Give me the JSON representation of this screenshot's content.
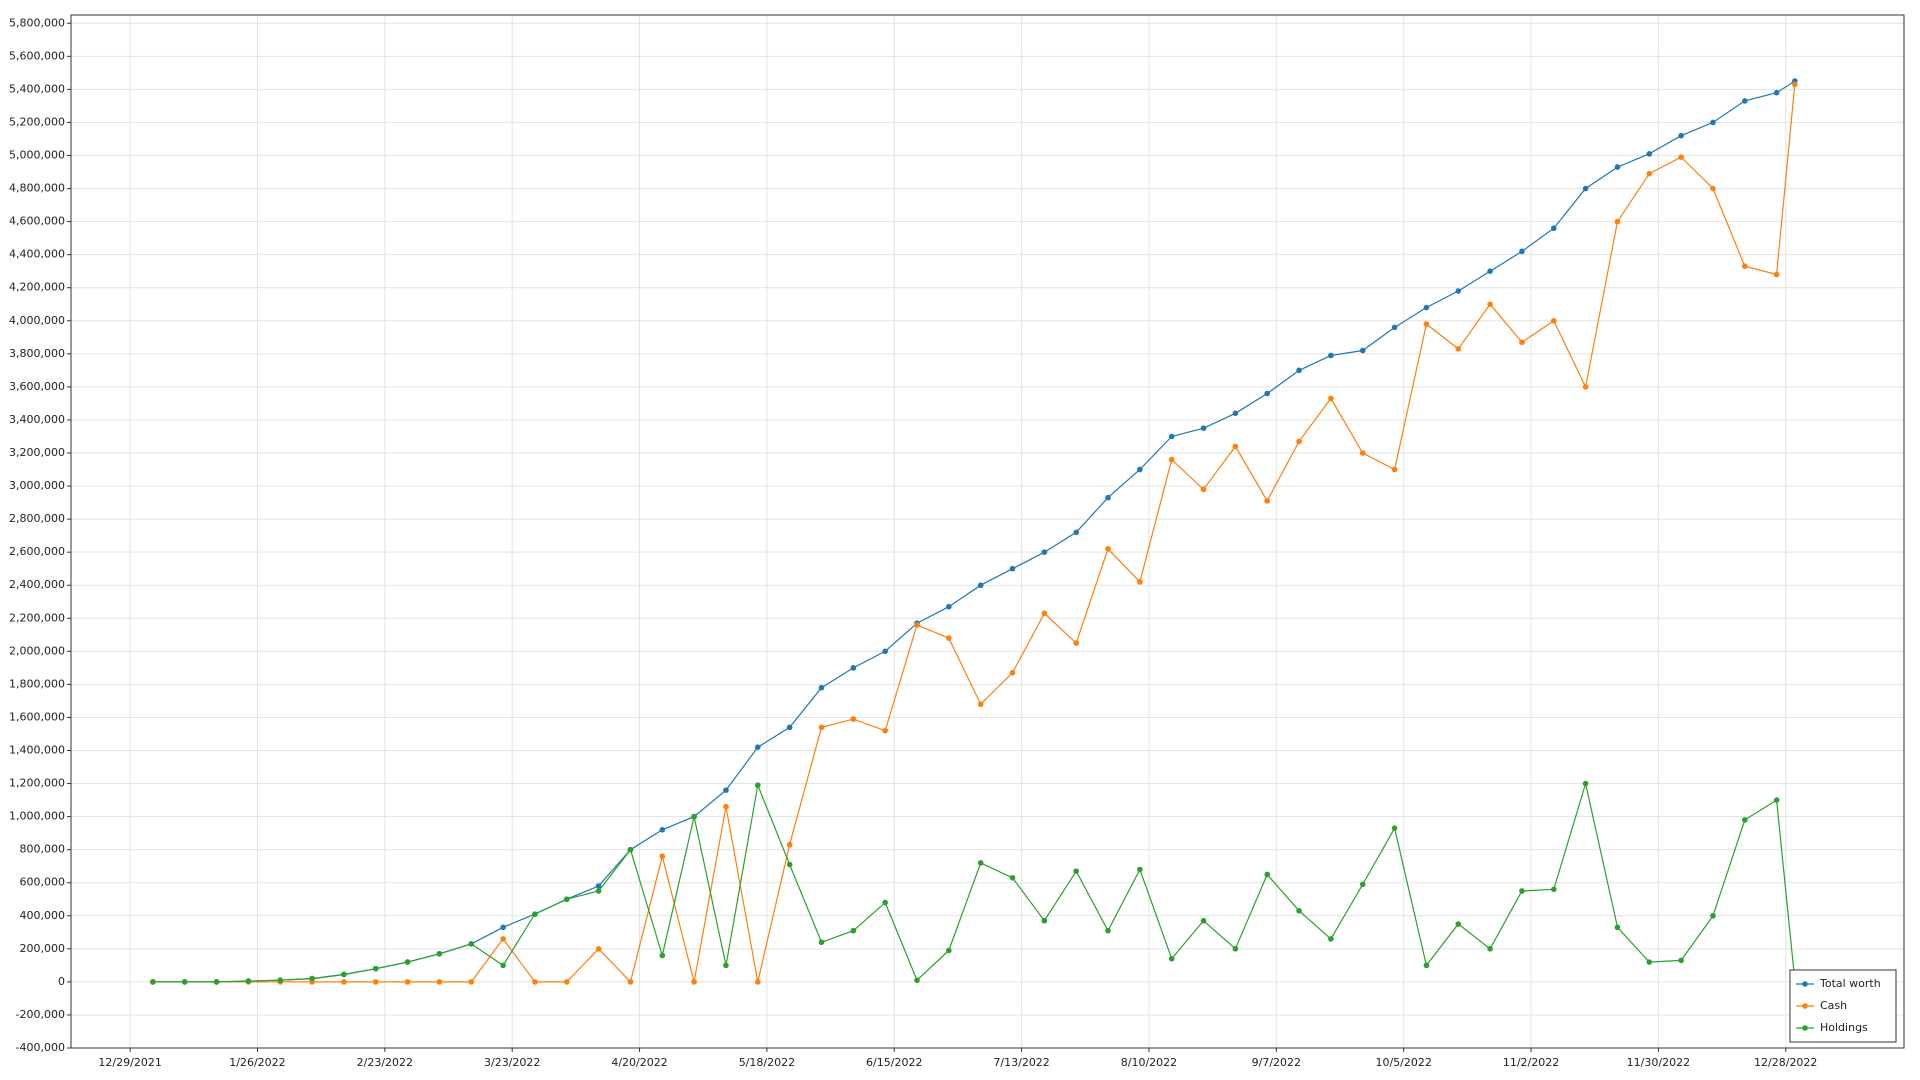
{
  "chart_data": {
    "type": "line",
    "x": [
      "1/3/2022",
      "1/10/2022",
      "1/17/2022",
      "1/24/2022",
      "1/31/2022",
      "2/7/2022",
      "2/14/2022",
      "2/21/2022",
      "2/28/2022",
      "3/7/2022",
      "3/14/2022",
      "3/21/2022",
      "3/28/2022",
      "4/4/2022",
      "4/11/2022",
      "4/18/2022",
      "4/25/2022",
      "5/2/2022",
      "5/9/2022",
      "5/16/2022",
      "5/23/2022",
      "5/30/2022",
      "6/6/2022",
      "6/13/2022",
      "6/20/2022",
      "6/27/2022",
      "7/4/2022",
      "7/11/2022",
      "7/18/2022",
      "7/25/2022",
      "8/1/2022",
      "8/8/2022",
      "8/15/2022",
      "8/22/2022",
      "8/29/2022",
      "9/5/2022",
      "9/12/2022",
      "9/19/2022",
      "9/26/2022",
      "10/3/2022",
      "10/10/2022",
      "10/17/2022",
      "10/24/2022",
      "10/31/2022",
      "11/7/2022",
      "11/14/2022",
      "11/21/2022",
      "11/28/2022",
      "12/5/2022",
      "12/12/2022",
      "12/19/2022",
      "12/26/2022",
      "12/30/2022"
    ],
    "series": [
      {
        "name": "Total worth",
        "color": "#1f77b4",
        "values": [
          0,
          0,
          0,
          5000,
          10000,
          20000,
          45000,
          80000,
          120000,
          170000,
          230000,
          330000,
          410000,
          500000,
          580000,
          800000,
          920000,
          1000000,
          1160000,
          1420000,
          1540000,
          1780000,
          1900000,
          2000000,
          2170000,
          2270000,
          2400000,
          2500000,
          2600000,
          2720000,
          2930000,
          3100000,
          3300000,
          3350000,
          3440000,
          3560000,
          3700000,
          3790000,
          3820000,
          3960000,
          4080000,
          4180000,
          4300000,
          4420000,
          4560000,
          4800000,
          4930000,
          5010000,
          5120000,
          5200000,
          5330000,
          5380000,
          5450000
        ]
      },
      {
        "name": "Cash",
        "color": "#ff7f0e",
        "values": [
          0,
          0,
          0,
          0,
          0,
          0,
          0,
          0,
          0,
          0,
          0,
          260000,
          0,
          0,
          200000,
          0,
          760000,
          0,
          1060000,
          0,
          830000,
          1540000,
          1590000,
          1520000,
          2160000,
          2080000,
          1680000,
          1870000,
          2230000,
          2050000,
          2620000,
          2420000,
          3160000,
          2980000,
          3240000,
          2910000,
          3270000,
          3530000,
          3200000,
          3100000,
          3980000,
          3830000,
          4100000,
          3870000,
          4000000,
          3600000,
          4600000,
          4890000,
          4990000,
          4800000,
          4330000,
          4280000,
          5430000
        ]
      },
      {
        "name": "Holdings",
        "color": "#2ca02c",
        "values": [
          0,
          0,
          0,
          5000,
          10000,
          20000,
          45000,
          80000,
          120000,
          170000,
          230000,
          100000,
          410000,
          500000,
          550000,
          800000,
          160000,
          1000000,
          100000,
          1190000,
          710000,
          240000,
          310000,
          480000,
          10000,
          190000,
          720000,
          630000,
          370000,
          670000,
          310000,
          680000,
          140000,
          370000,
          200000,
          650000,
          430000,
          260000,
          590000,
          930000,
          100000,
          350000,
          200000,
          550000,
          560000,
          1200000,
          330000,
          120000,
          130000,
          400000,
          980000,
          1100000,
          10000
        ]
      }
    ],
    "xlim": [
      "12/16/2021",
      "1/23/2023"
    ],
    "xticks": [
      "12/29/2021",
      "1/26/2022",
      "2/23/2022",
      "3/23/2022",
      "4/20/2022",
      "5/18/2022",
      "6/15/2022",
      "7/13/2022",
      "8/10/2022",
      "9/7/2022",
      "10/5/2022",
      "11/2/2022",
      "11/30/2022",
      "12/28/2022"
    ],
    "ylim": [
      -400000,
      5850000
    ],
    "yticks": [
      {
        "value": -400000,
        "label": "-400,000"
      },
      {
        "value": -200000,
        "label": "-200,000"
      },
      0,
      {
        "value": 200000,
        "label": "200,000"
      },
      {
        "value": 400000,
        "label": "400,000"
      },
      {
        "value": 600000,
        "label": "600,000"
      },
      {
        "value": 800000,
        "label": "800,000"
      },
      {
        "value": 1000000,
        "label": "1,000,000"
      },
      {
        "value": 1200000,
        "label": "1,200,000"
      },
      {
        "value": 1400000,
        "label": "1,400,000"
      },
      {
        "value": 1600000,
        "label": "1,600,000"
      },
      {
        "value": 1800000,
        "label": "1,800,000"
      },
      {
        "value": 2000000,
        "label": "2,000,000"
      },
      {
        "value": 2200000,
        "label": "2,200,000"
      },
      {
        "value": 2400000,
        "label": "2,400,000"
      },
      {
        "value": 2600000,
        "label": "2,600,000"
      },
      {
        "value": 2800000,
        "label": "2,800,000"
      },
      {
        "value": 3000000,
        "label": "3,000,000"
      },
      {
        "value": 3200000,
        "label": "3,200,000"
      },
      {
        "value": 3400000,
        "label": "3,400,000"
      },
      {
        "value": 3600000,
        "label": "3,600,000"
      },
      {
        "value": 3800000,
        "label": "3,800,000"
      },
      {
        "value": 4000000,
        "label": "4,000,000"
      },
      {
        "value": 4200000,
        "label": "4,200,000"
      },
      {
        "value": 4400000,
        "label": "4,400,000"
      },
      {
        "value": 4600000,
        "label": "4,600,000"
      },
      {
        "value": 4800000,
        "label": "4,800,000"
      },
      {
        "value": 5000000,
        "label": "5,000,000"
      },
      {
        "value": 5200000,
        "label": "5,200,000"
      },
      {
        "value": 5400000,
        "label": "5,400,000"
      },
      {
        "value": 5600000,
        "label": "5,600,000"
      },
      {
        "value": 5800000,
        "label": "5,800,000"
      }
    ],
    "grid": true,
    "legend": "lower right"
  }
}
